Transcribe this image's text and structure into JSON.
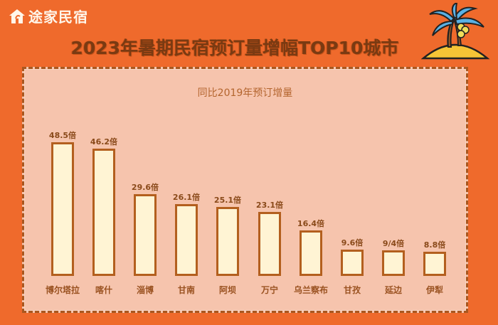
{
  "brand": {
    "name": "途家民宿",
    "icon": "house-icon"
  },
  "title": "2023年暑期民宿预订量增幅TOP10城市",
  "decoration": "palm-tree-island-icon",
  "colors": {
    "background": "#ef6a2c",
    "panel": "#f6c4ad",
    "bar_fill": "#fff4d4",
    "bar_border": "#b35f1e",
    "title": "#7a3a12"
  },
  "chart_data": {
    "type": "bar",
    "title": "同比2019年预订增量",
    "xlabel": "",
    "ylabel": "",
    "unit": "倍",
    "categories": [
      "博尔塔拉",
      "喀什",
      "淄博",
      "甘南",
      "阿坝",
      "万宁",
      "乌兰察布",
      "甘孜",
      "延边",
      "伊犁"
    ],
    "values": [
      48.5,
      46.2,
      29.6,
      26.1,
      25.1,
      23.1,
      16.4,
      9.6,
      9.4,
      8.8
    ],
    "data_labels": [
      "48.5倍",
      "46.2倍",
      "29.6倍",
      "26.1倍",
      "25.1倍",
      "23.1倍",
      "16.4倍",
      "9.6倍",
      "9/4倍",
      "8.8倍"
    ],
    "grid": false,
    "legend": "none",
    "ylim": [
      0,
      50
    ]
  }
}
